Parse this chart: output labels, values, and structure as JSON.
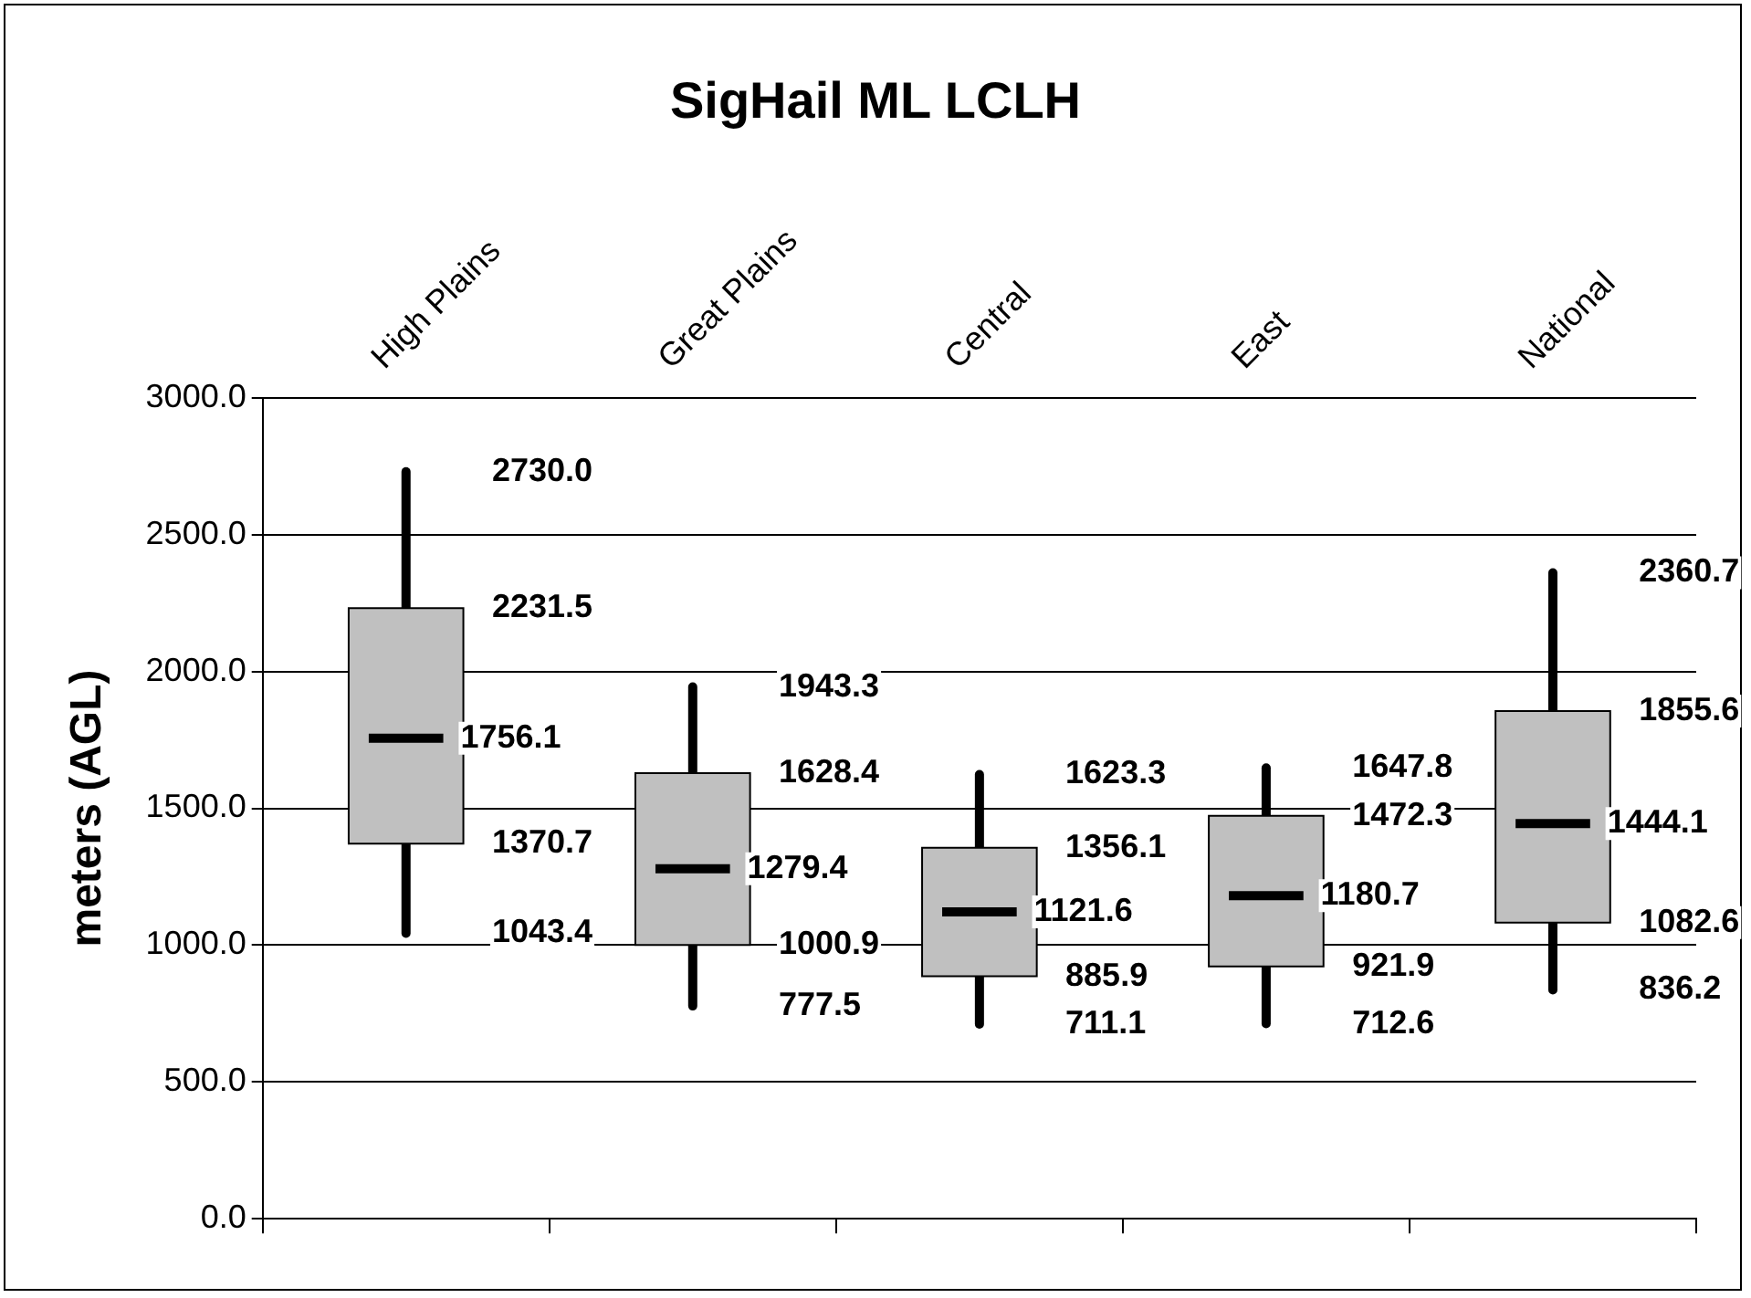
{
  "chart_data": {
    "type": "box",
    "title": "SigHail ML LCLH",
    "ylabel": "meters (AGL)",
    "categories": [
      "High Plains",
      "Great Plains",
      "Central",
      "East",
      "National"
    ],
    "color": "#c0c0c0",
    "boxes": [
      {
        "low": 1043.4,
        "q1": 1370.7,
        "median": 1756.1,
        "q3": 2231.5,
        "high": 2730.0
      },
      {
        "low": 777.5,
        "q1": 1000.9,
        "median": 1279.4,
        "q3": 1628.4,
        "high": 1943.3
      },
      {
        "low": 711.1,
        "q1": 885.9,
        "median": 1121.6,
        "q3": 1356.1,
        "high": 1623.3
      },
      {
        "low": 712.6,
        "q1": 921.9,
        "median": 1180.7,
        "q3": 1472.3,
        "high": 1647.8
      },
      {
        "low": 836.2,
        "q1": 1082.6,
        "median": 1444.1,
        "q3": 1855.6,
        "high": 2360.7
      }
    ],
    "ylim": [
      0,
      3000
    ],
    "yticks": [
      {
        "value": 0,
        "label": "0.0"
      },
      {
        "value": 500,
        "label": "500.0"
      },
      {
        "value": 1000,
        "label": "1000.0"
      },
      {
        "value": 1500,
        "label": "1500.0"
      },
      {
        "value": 2000,
        "label": "2000.0"
      },
      {
        "value": 2500,
        "label": "2500.0"
      },
      {
        "value": 3000,
        "label": "3000.0"
      }
    ],
    "value_labels": [
      [
        "2730.0",
        "2231.5",
        "1756.1",
        "1370.7",
        "1043.4"
      ],
      [
        "1943.3",
        "1628.4",
        "1279.4",
        "1000.9",
        "777.5"
      ],
      [
        "1623.3",
        "1356.1",
        "1121.6",
        "885.9",
        "711.1"
      ],
      [
        "1647.8",
        "1472.3",
        "1180.7",
        "921.9",
        "712.6"
      ],
      [
        "2360.7",
        "1855.6",
        "1444.1",
        "1082.6",
        "836.2"
      ]
    ],
    "grid": "y",
    "legend": false
  }
}
